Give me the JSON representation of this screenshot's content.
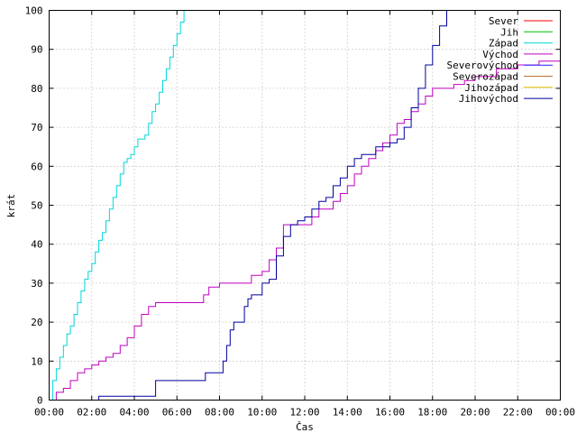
{
  "chart_data": {
    "type": "line",
    "title": "",
    "xlabel": "Čas",
    "ylabel": "krát",
    "xlim": [
      "00:00",
      "24:00"
    ],
    "ylim": [
      0,
      100
    ],
    "x_ticks": [
      "00:00",
      "02:00",
      "04:00",
      "06:00",
      "08:00",
      "10:00",
      "12:00",
      "14:00",
      "16:00",
      "18:00",
      "20:00",
      "22:00",
      "00:00"
    ],
    "y_ticks": [
      0,
      10,
      20,
      30,
      40,
      50,
      60,
      70,
      80,
      90,
      100
    ],
    "grid": true,
    "legend_position": "top-right",
    "series": [
      {
        "name": "Sever",
        "color": "#ff0000",
        "x": [],
        "values": []
      },
      {
        "name": "Jih",
        "color": "#00c000",
        "x": [],
        "values": []
      },
      {
        "name": "Západ",
        "color": "#00d8d8",
        "x": [
          "00:00",
          "00:10",
          "00:20",
          "00:30",
          "00:40",
          "00:50",
          "01:00",
          "01:10",
          "01:20",
          "01:30",
          "01:40",
          "01:50",
          "02:00",
          "02:10",
          "02:20",
          "02:30",
          "02:40",
          "02:50",
          "03:00",
          "03:10",
          "03:20",
          "03:30",
          "03:40",
          "03:50",
          "04:00",
          "04:10",
          "04:20",
          "04:30",
          "04:40",
          "04:50",
          "05:00",
          "05:10",
          "05:20",
          "05:30",
          "05:40",
          "05:50",
          "06:00",
          "06:10",
          "06:20",
          "06:30",
          "06:40"
        ],
        "values": [
          0,
          5,
          8,
          11,
          14,
          17,
          19,
          22,
          25,
          28,
          31,
          33,
          35,
          38,
          41,
          43,
          46,
          49,
          52,
          55,
          58,
          61,
          62,
          63,
          65,
          67,
          67,
          68,
          71,
          74,
          76,
          79,
          82,
          85,
          88,
          91,
          94,
          97,
          100,
          100,
          100
        ]
      },
      {
        "name": "Východ",
        "color": "#c000c0",
        "x": [
          "00:00",
          "00:20",
          "00:40",
          "01:00",
          "01:20",
          "01:40",
          "02:00",
          "02:20",
          "02:40",
          "03:00",
          "03:20",
          "03:40",
          "04:00",
          "04:20",
          "04:40",
          "05:00",
          "05:30",
          "06:00",
          "06:30",
          "07:00",
          "07:15",
          "07:30",
          "08:00",
          "08:30",
          "09:00",
          "09:30",
          "10:00",
          "10:20",
          "10:40",
          "11:00",
          "11:30",
          "12:00",
          "12:20",
          "12:40",
          "13:00",
          "13:20",
          "13:40",
          "14:00",
          "14:20",
          "14:40",
          "15:00",
          "15:20",
          "15:40",
          "16:00",
          "16:20",
          "16:40",
          "17:00",
          "17:20",
          "17:40",
          "18:00",
          "18:30",
          "19:00",
          "19:30",
          "20:00",
          "21:00",
          "22:00",
          "23:00",
          "24:00"
        ],
        "values": [
          0,
          2,
          3,
          5,
          7,
          8,
          9,
          10,
          11,
          12,
          14,
          16,
          19,
          22,
          24,
          25,
          25,
          25,
          25,
          25,
          27,
          29,
          30,
          30,
          30,
          32,
          33,
          36,
          39,
          45,
          45,
          45,
          47,
          49,
          49,
          51,
          53,
          55,
          58,
          60,
          62,
          64,
          66,
          68,
          71,
          72,
          74,
          76,
          78,
          80,
          80,
          81,
          82,
          83,
          85,
          86,
          87,
          87
        ]
      },
      {
        "name": "Severovýchod",
        "color": "#2020ff",
        "x": [],
        "values": []
      },
      {
        "name": "Severozápad",
        "color": "#c07030",
        "x": [],
        "values": []
      },
      {
        "name": "Jihozápad",
        "color": "#e0c000",
        "x": [],
        "values": []
      },
      {
        "name": "Jihovýchod",
        "color": "#0000a0",
        "x": [
          "02:10",
          "02:20",
          "04:00",
          "04:40",
          "04:50",
          "05:00",
          "05:30",
          "06:00",
          "06:30",
          "07:00",
          "07:20",
          "07:40",
          "08:00",
          "08:10",
          "08:20",
          "08:30",
          "08:40",
          "08:50",
          "09:00",
          "09:10",
          "09:20",
          "09:30",
          "09:40",
          "10:00",
          "10:20",
          "10:40",
          "11:00",
          "11:20",
          "11:40",
          "12:00",
          "12:20",
          "12:40",
          "13:00",
          "13:20",
          "13:40",
          "14:00",
          "14:20",
          "14:40",
          "15:00",
          "15:20",
          "15:40",
          "16:00",
          "16:20",
          "16:40",
          "17:00",
          "17:20",
          "17:40",
          "18:00",
          "18:20",
          "18:40"
        ],
        "values": [
          0,
          1,
          1,
          1,
          1,
          5,
          5,
          5,
          5,
          5,
          7,
          7,
          7,
          10,
          14,
          18,
          20,
          20,
          20,
          24,
          26,
          27,
          27,
          30,
          31,
          37,
          42,
          45,
          46,
          47,
          49,
          51,
          52,
          55,
          57,
          60,
          62,
          63,
          63,
          65,
          65,
          66,
          67,
          70,
          75,
          80,
          86,
          91,
          96,
          100
        ]
      }
    ]
  }
}
